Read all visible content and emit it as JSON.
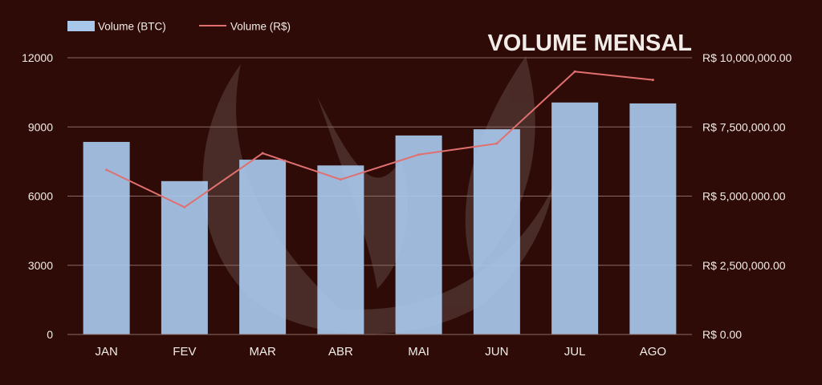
{
  "colors": {
    "background": "#2e0b06",
    "bar": "#a8c8eb",
    "line": "#e07070",
    "grid": "#8a6a65",
    "text": "#f2ece8",
    "watermark": "#ffffff"
  },
  "chart_data": {
    "type": "bar",
    "title": "VOLUME MENSAL",
    "categories": [
      "JAN",
      "FEV",
      "MAR",
      "ABR",
      "MAI",
      "JUN",
      "JUL",
      "AGO"
    ],
    "series": [
      {
        "name": "Volume (BTC)",
        "type": "bar",
        "axis": "left",
        "values": [
          8350,
          6650,
          7580,
          7330,
          8630,
          8900,
          10060,
          10020
        ]
      },
      {
        "name": "Volume (R$)",
        "type": "line",
        "axis": "right",
        "values": [
          5950000,
          4600000,
          6550000,
          5600000,
          6500000,
          6900000,
          9500000,
          9200000
        ]
      }
    ],
    "y_left": {
      "ylim": [
        0,
        12000
      ],
      "ticks": [
        "0",
        "3000",
        "6000",
        "9000",
        "12000"
      ]
    },
    "y_right": {
      "ylim": [
        0,
        10000000
      ],
      "ticks": [
        "R$ 0.00",
        "R$ 2,500,000.00",
        "R$ 5,000,000.00",
        "R$ 7,500,000.00",
        "R$ 10,000,000.00"
      ]
    },
    "grid": true,
    "legend_position": "top-left",
    "watermark": "flame logo"
  }
}
